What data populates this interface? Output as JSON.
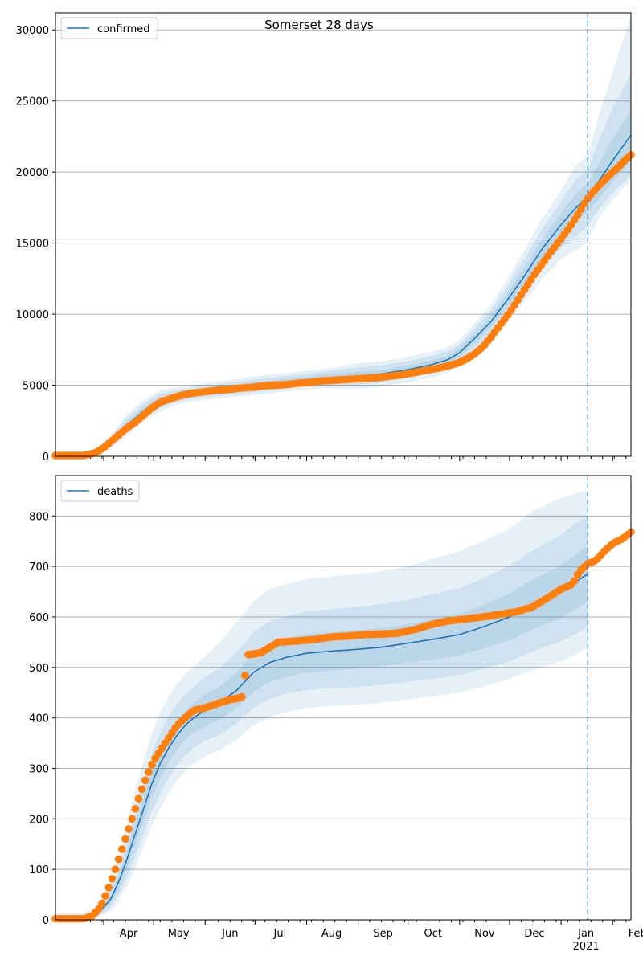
{
  "figure": {
    "title": "Somerset 28 days",
    "x_ticks": [
      "Apr",
      "May",
      "Jun",
      "Jul",
      "Aug",
      "Sep",
      "Oct",
      "Nov",
      "Dec",
      "Jan",
      "Feb"
    ],
    "x_year_label": "2021",
    "forecast_start": "2021-01-17",
    "colors": {
      "model": "#1f77b4",
      "observed": "#ff7f0e",
      "band": "#1f77b4",
      "grid": "#b0b0b0",
      "forecast_line": "#1f77b4"
    }
  },
  "chart_data": [
    {
      "type": "line",
      "legend": "confirmed",
      "legend_placement": "top-left",
      "grid": "horizontal",
      "xlim": [
        "2020-03-03",
        "2021-02-12"
      ],
      "ylim": [
        0,
        31200
      ],
      "y_ticks": [
        "0",
        "5000",
        "10000",
        "15000",
        "20000",
        "25000",
        "30000"
      ],
      "y_tick_values": [
        0,
        5000,
        10000,
        15000,
        20000,
        25000,
        30000
      ],
      "series": [
        {
          "name": "confirmed",
          "kind": "model",
          "x": [
            "2020-03-03",
            "2020-03-20",
            "2020-03-28",
            "2020-04-05",
            "2020-04-15",
            "2020-04-25",
            "2020-05-05",
            "2020-05-15",
            "2020-05-25",
            "2020-06-05",
            "2020-06-15",
            "2020-06-30",
            "2020-07-15",
            "2020-08-01",
            "2020-08-15",
            "2020-09-01",
            "2020-09-15",
            "2020-10-01",
            "2020-10-15",
            "2020-10-25",
            "2020-11-01",
            "2020-11-10",
            "2020-11-20",
            "2020-12-01",
            "2020-12-10",
            "2020-12-20",
            "2021-01-01",
            "2021-01-10",
            "2021-01-17",
            "2021-01-25",
            "2021-02-01",
            "2021-02-12"
          ],
          "y": [
            30,
            60,
            300,
            1000,
            2200,
            3200,
            3900,
            4250,
            4450,
            4600,
            4750,
            4950,
            5150,
            5350,
            5500,
            5650,
            5800,
            6100,
            6450,
            6800,
            7300,
            8300,
            9500,
            11200,
            12700,
            14500,
            16300,
            17500,
            18200,
            19600,
            20800,
            22600
          ],
          "band_inner": [
            [
              30,
              60,
              250,
              850,
              1950,
              2950,
              3650,
              4050,
              4250,
              4400,
              4550,
              4700,
              4900,
              5100,
              5200,
              5350,
              5500,
              5800,
              6150,
              6500,
              7000,
              7950,
              9100,
              10700,
              12100,
              13800,
              15500,
              16500,
              17200,
              18300,
              19300,
              20800
            ],
            [
              30,
              60,
              350,
              1150,
              2450,
              3450,
              4150,
              4450,
              4650,
              4800,
              4950,
              5200,
              5400,
              5600,
              5800,
              5950,
              6100,
              6400,
              6750,
              7100,
              7600,
              8650,
              9900,
              11700,
              13300,
              15200,
              17100,
              18500,
              19200,
              20900,
              22300,
              24400
            ]
          ],
          "band_mid": [
            [
              30,
              60,
              200,
              700,
              1700,
              2700,
              3400,
              3850,
              4050,
              4200,
              4350,
              4500,
              4700,
              4900,
              5000,
              5050,
              5200,
              5500,
              5850,
              6200,
              6700,
              7600,
              8700,
              10200,
              11500,
              13100,
              14700,
              15500,
              16200,
              17600,
              18500,
              19800
            ],
            [
              30,
              60,
              400,
              1300,
              2700,
              3700,
              4400,
              4650,
              4850,
              5000,
              5150,
              5400,
              5600,
              5800,
              6000,
              6250,
              6400,
              6700,
              7050,
              7400,
              7900,
              9000,
              10300,
              12200,
              13900,
              15900,
              17900,
              19500,
              20200,
              22600,
              24500,
              27000
            ]
          ],
          "band_outer": [
            [
              30,
              60,
              150,
              550,
              1450,
              2450,
              3150,
              3650,
              3850,
              4000,
              4150,
              4300,
              4500,
              4700,
              4800,
              4750,
              4900,
              5200,
              5550,
              5900,
              6400,
              7250,
              8300,
              9700,
              10900,
              12400,
              13900,
              14500,
              15200,
              17000,
              18000,
              19500
            ],
            [
              30,
              60,
              450,
              1450,
              2950,
              3950,
              4650,
              4850,
              5050,
              5200,
              5350,
              5600,
              5800,
              6000,
              6200,
              6550,
              6700,
              7000,
              7350,
              7700,
              8200,
              9350,
              10700,
              12700,
              14500,
              16600,
              18700,
              20500,
              21200,
              24500,
              27000,
              31000
            ]
          ]
        },
        {
          "name": "",
          "kind": "observed",
          "x": [
            "2020-03-03",
            "2020-03-20",
            "2020-03-24",
            "2020-03-28",
            "2020-04-01",
            "2020-04-05",
            "2020-04-10",
            "2020-04-15",
            "2020-04-20",
            "2020-04-25",
            "2020-04-30",
            "2020-05-05",
            "2020-05-10",
            "2020-05-15",
            "2020-05-20",
            "2020-05-25",
            "2020-06-01",
            "2020-06-08",
            "2020-06-15",
            "2020-06-22",
            "2020-06-29",
            "2020-07-06",
            "2020-07-13",
            "2020-07-20",
            "2020-07-27",
            "2020-08-03",
            "2020-08-10",
            "2020-08-17",
            "2020-08-24",
            "2020-08-31",
            "2020-09-07",
            "2020-09-14",
            "2020-09-21",
            "2020-09-28",
            "2020-10-05",
            "2020-10-12",
            "2020-10-19",
            "2020-10-26",
            "2020-11-01",
            "2020-11-05",
            "2020-11-10",
            "2020-11-15",
            "2020-11-20",
            "2020-11-25",
            "2020-12-01",
            "2020-12-06",
            "2020-12-11",
            "2020-12-16",
            "2020-12-21",
            "2020-12-26",
            "2021-01-01",
            "2021-01-06",
            "2021-01-11",
            "2021-01-16",
            "2021-01-21",
            "2021-01-26",
            "2021-01-31",
            "2021-02-05",
            "2021-02-09",
            "2021-02-12"
          ],
          "y": [
            50,
            60,
            150,
            300,
            600,
            1000,
            1500,
            2000,
            2400,
            2900,
            3400,
            3800,
            4000,
            4200,
            4350,
            4450,
            4550,
            4650,
            4700,
            4800,
            4850,
            4950,
            5000,
            5050,
            5150,
            5200,
            5300,
            5350,
            5400,
            5450,
            5500,
            5550,
            5650,
            5750,
            5900,
            6050,
            6200,
            6400,
            6600,
            6850,
            7200,
            7700,
            8400,
            9200,
            10100,
            11000,
            11900,
            12800,
            13600,
            14400,
            15300,
            16100,
            17000,
            18000,
            18700,
            19300,
            19900,
            20400,
            20900,
            21200
          ]
        }
      ]
    },
    {
      "type": "line",
      "legend": "deaths",
      "legend_placement": "top-left",
      "grid": "horizontal",
      "xlim": [
        "2020-03-03",
        "2021-02-12"
      ],
      "ylim": [
        0,
        880
      ],
      "y_ticks": [
        "0",
        "100",
        "200",
        "300",
        "400",
        "500",
        "600",
        "700",
        "800"
      ],
      "y_tick_values": [
        0,
        100,
        200,
        300,
        400,
        500,
        600,
        700,
        800
      ],
      "series": [
        {
          "name": "deaths",
          "kind": "model",
          "x": [
            "2020-03-03",
            "2020-03-20",
            "2020-03-28",
            "2020-04-05",
            "2020-04-10",
            "2020-04-15",
            "2020-04-20",
            "2020-04-25",
            "2020-04-30",
            "2020-05-05",
            "2020-05-10",
            "2020-05-15",
            "2020-05-20",
            "2020-05-25",
            "2020-06-01",
            "2020-06-10",
            "2020-06-20",
            "2020-06-30",
            "2020-07-10",
            "2020-07-20",
            "2020-08-01",
            "2020-08-15",
            "2020-09-01",
            "2020-09-15",
            "2020-10-01",
            "2020-10-15",
            "2020-11-01",
            "2020-11-15",
            "2020-12-01",
            "2020-12-15",
            "2021-01-01",
            "2021-01-10",
            "2021-01-17"
          ],
          "y": [
            2,
            3,
            10,
            40,
            75,
            120,
            170,
            220,
            270,
            310,
            340,
            365,
            385,
            400,
            415,
            430,
            455,
            490,
            510,
            520,
            528,
            532,
            536,
            540,
            548,
            555,
            565,
            580,
            600,
            625,
            650,
            670,
            685
          ],
          "band_inner": [
            [
              2,
              2,
              8,
              32,
              62,
              102,
              148,
              195,
              243,
              281,
              311,
              336,
              356,
              371,
              384,
              397,
              420,
              452,
              472,
              482,
              490,
              494,
              498,
              502,
              510,
              515,
              524,
              537,
              554,
              576,
              598,
              616,
              630
            ],
            [
              2,
              4,
              12,
              48,
              88,
              138,
              192,
              245,
              297,
              339,
              369,
              394,
              414,
              429,
              446,
              463,
              490,
              528,
              548,
              558,
              566,
              570,
              574,
              578,
              586,
              595,
              606,
              623,
              646,
              674,
              702,
              724,
              740
            ]
          ],
          "band_mid": [
            [
              2,
              2,
              6,
              25,
              50,
              85,
              125,
              170,
              215,
              250,
              280,
              305,
              325,
              340,
              355,
              367,
              390,
              420,
              438,
              448,
              455,
              459,
              461,
              465,
              472,
              477,
              485,
              497,
              512,
              532,
              552,
              566,
              580
            ],
            [
              2,
              5,
              15,
              58,
              102,
              158,
              218,
              273,
              330,
              372,
              402,
              427,
              447,
              462,
              480,
              500,
              530,
              570,
              592,
              602,
              611,
              615,
              620,
              625,
              634,
              645,
              657,
              676,
              702,
              732,
              762,
              788,
              800
            ]
          ],
          "band_outer": [
            [
              2,
              1,
              4,
              18,
              38,
              68,
              102,
              145,
              187,
              220,
              250,
              275,
              295,
              310,
              324,
              337,
              357,
              385,
              402,
              412,
              420,
              424,
              426,
              430,
              437,
              442,
              450,
              462,
              477,
              495,
              512,
              526,
              540
            ],
            [
              14,
              15,
              22,
              75,
              128,
              192,
              258,
              313,
              370,
              412,
              442,
              467,
              487,
              502,
              522,
              550,
              590,
              630,
              655,
              665,
              675,
              680,
              685,
              690,
              700,
              715,
              730,
              750,
              775,
              810,
              835,
              845,
              850
            ]
          ]
        },
        {
          "name": "",
          "kind": "observed",
          "x": [
            "2020-03-03",
            "2020-03-20",
            "2020-03-25",
            "2020-03-30",
            "2020-04-03",
            "2020-04-07",
            "2020-04-11",
            "2020-04-15",
            "2020-04-19",
            "2020-04-23",
            "2020-04-27",
            "2020-05-01",
            "2020-05-05",
            "2020-05-10",
            "2020-05-15",
            "2020-05-20",
            "2020-05-25",
            "2020-06-01",
            "2020-06-08",
            "2020-06-15",
            "2020-06-22",
            "2020-06-24",
            "2020-06-26",
            "2020-07-01",
            "2020-07-05",
            "2020-07-10",
            "2020-07-15",
            "2020-07-25",
            "2020-08-05",
            "2020-08-15",
            "2020-08-25",
            "2020-09-05",
            "2020-09-15",
            "2020-09-25",
            "2020-10-05",
            "2020-10-15",
            "2020-10-25",
            "2020-11-05",
            "2020-11-15",
            "2020-11-25",
            "2020-12-05",
            "2020-12-15",
            "2020-12-25",
            "2021-01-01",
            "2021-01-08",
            "2021-01-12",
            "2021-01-17",
            "2021-01-22",
            "2021-01-27",
            "2021-02-01",
            "2021-02-07",
            "2021-02-12"
          ],
          "y": [
            2,
            2,
            8,
            25,
            55,
            90,
            130,
            170,
            210,
            250,
            285,
            315,
            335,
            360,
            385,
            400,
            415,
            420,
            428,
            435,
            440,
            443,
            525,
            527,
            530,
            540,
            550,
            552,
            555,
            560,
            562,
            565,
            566,
            568,
            575,
            585,
            592,
            596,
            600,
            605,
            610,
            620,
            640,
            655,
            665,
            690,
            705,
            712,
            730,
            745,
            755,
            768
          ]
        }
      ]
    }
  ]
}
